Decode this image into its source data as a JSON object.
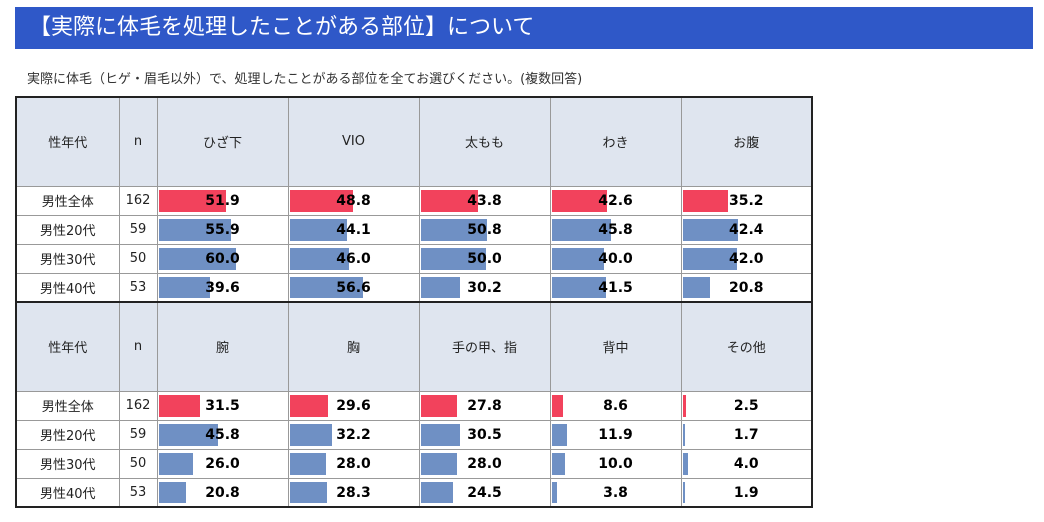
{
  "title": "【実際に体毛を処理したことがある部位】について",
  "subtitle": "実際に体毛（ヒゲ・眉毛以外）で、処理したことがある部位を全てお選びください。(複数回答)",
  "header": {
    "group_label": "性年代",
    "n_label": "n"
  },
  "colors": {
    "total_bar": "#f2425c",
    "group_bar": "#6f90c4",
    "header_bg": "#dfe5ef",
    "title_bg": "#2f58c8"
  },
  "chart_data": {
    "type": "table",
    "scale_max": 100,
    "sections": [
      {
        "columns": [
          "ひざ下",
          "VIO",
          "太もも",
          "わき",
          "お腹"
        ],
        "rows": [
          {
            "label": "男性全体",
            "n": "162",
            "values": [
              "51.9",
              "48.8",
              "43.8",
              "42.6",
              "35.2"
            ]
          },
          {
            "label": "男性20代",
            "n": "59",
            "values": [
              "55.9",
              "44.1",
              "50.8",
              "45.8",
              "42.4"
            ]
          },
          {
            "label": "男性30代",
            "n": "50",
            "values": [
              "60.0",
              "46.0",
              "50.0",
              "40.0",
              "42.0"
            ]
          },
          {
            "label": "男性40代",
            "n": "53",
            "values": [
              "39.6",
              "56.6",
              "30.2",
              "41.5",
              "20.8"
            ]
          }
        ]
      },
      {
        "columns": [
          "腕",
          "胸",
          "手の甲、指",
          "背中",
          "その他"
        ],
        "rows": [
          {
            "label": "男性全体",
            "n": "162",
            "values": [
              "31.5",
              "29.6",
              "27.8",
              "8.6",
              "2.5"
            ]
          },
          {
            "label": "男性20代",
            "n": "59",
            "values": [
              "45.8",
              "32.2",
              "30.5",
              "11.9",
              "1.7"
            ]
          },
          {
            "label": "男性30代",
            "n": "50",
            "values": [
              "26.0",
              "28.0",
              "28.0",
              "10.0",
              "4.0"
            ]
          },
          {
            "label": "男性40代",
            "n": "53",
            "values": [
              "20.8",
              "28.3",
              "24.5",
              "3.8",
              "1.9"
            ]
          }
        ]
      }
    ]
  }
}
